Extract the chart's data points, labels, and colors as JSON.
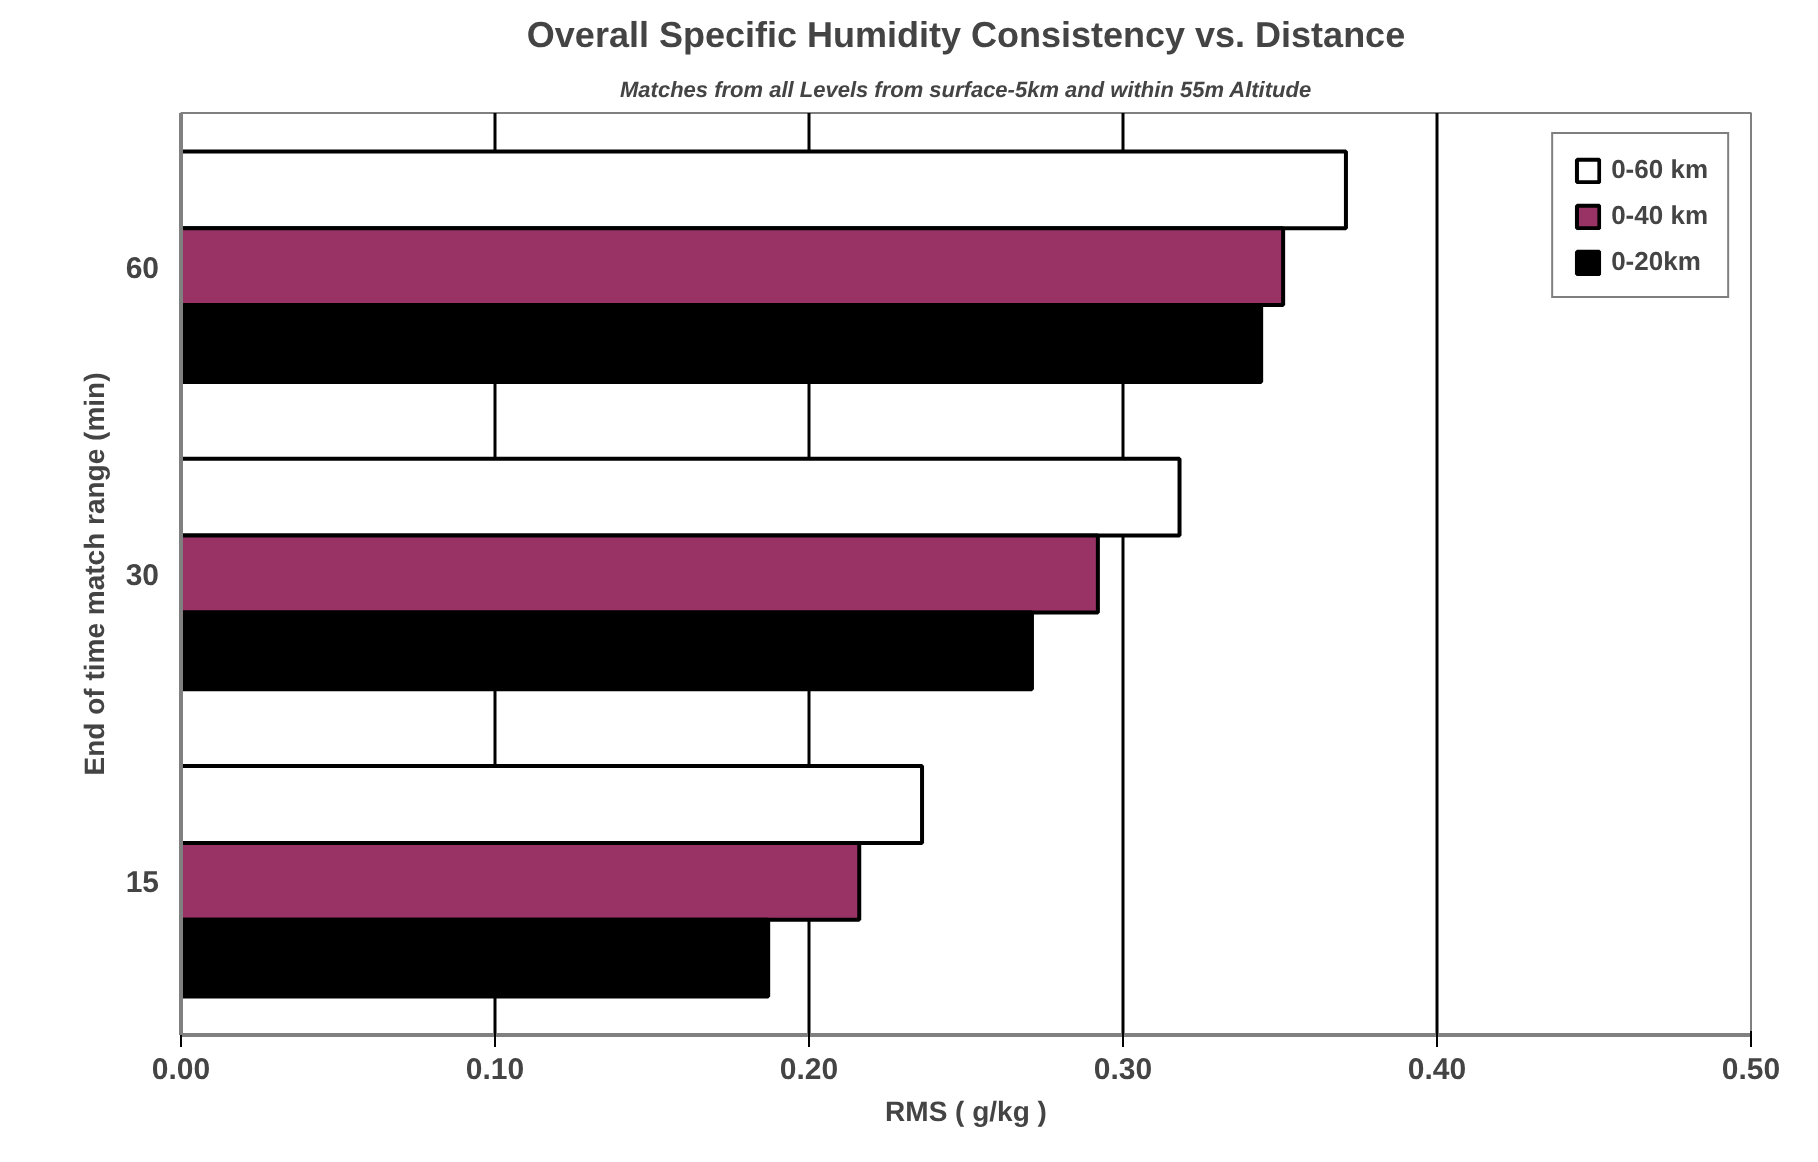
{
  "chart_data": {
    "type": "bar",
    "orientation": "horizontal",
    "title": "Overall Specific Humidity Consistency vs. Distance",
    "subtitle": "Matches from all Levels from surface-5km and within 55m Altitude",
    "xlabel": "RMS ( g/kg )",
    "ylabel": "End of time match range (min)",
    "categories": [
      "60",
      "30",
      "15"
    ],
    "series": [
      {
        "name": "0-60 km",
        "color": "#ffffff",
        "values": [
          0.371,
          0.318,
          0.236
        ]
      },
      {
        "name": "0-40 km",
        "color": "#993366",
        "values": [
          0.351,
          0.292,
          0.216
        ]
      },
      {
        "name": "0-20km",
        "color": "#000000",
        "values": [
          0.344,
          0.271,
          0.187
        ]
      }
    ],
    "xlim": [
      0,
      0.5
    ],
    "xticks": [
      {
        "value": 0,
        "label": "0.00"
      },
      {
        "value": 0.1,
        "label": "0.10"
      },
      {
        "value": 0.2,
        "label": "0.20"
      },
      {
        "value": 0.3,
        "label": "0.30"
      },
      {
        "value": 0.4,
        "label": "0.40"
      },
      {
        "value": 0.5,
        "label": "0.50"
      }
    ],
    "grid": "x",
    "legend": "top right"
  }
}
